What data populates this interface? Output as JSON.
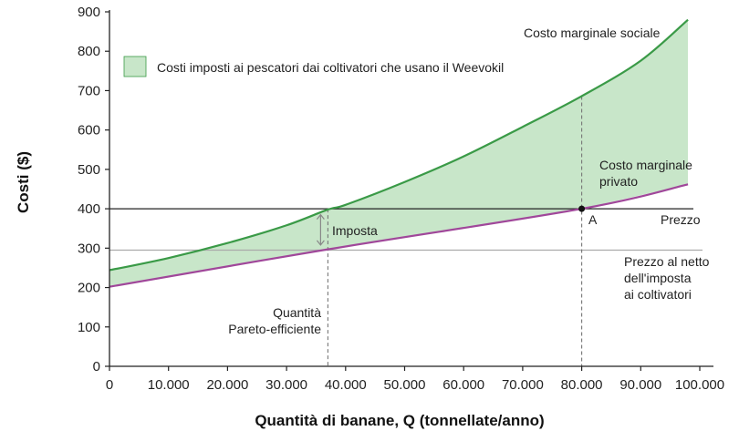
{
  "chart_data": {
    "type": "line",
    "xlabel": "Quantità di banane, Q (tonnellate/anno)",
    "ylabel": "Costi ($)",
    "xlim": [
      0,
      100000
    ],
    "ylim": [
      0,
      900
    ],
    "x_ticks": [
      0,
      10000,
      20000,
      30000,
      40000,
      50000,
      60000,
      70000,
      80000,
      90000,
      100000
    ],
    "x_tick_labels": [
      "0",
      "10.000",
      "20.000",
      "30.000",
      "40.000",
      "50.000",
      "60.000",
      "70.000",
      "80.000",
      "90.000",
      "100.000"
    ],
    "y_ticks": [
      0,
      100,
      200,
      300,
      400,
      500,
      600,
      700,
      800,
      900
    ],
    "y_tick_labels": [
      "0",
      "100",
      "200",
      "300",
      "400",
      "500",
      "600",
      "700",
      "800",
      "900"
    ],
    "grid": false,
    "series": [
      {
        "name": "Costo marginale sociale",
        "color": "#3a9a47",
        "x": [
          0,
          10000,
          20000,
          30000,
          37000,
          40000,
          50000,
          60000,
          70000,
          80000,
          90000,
          98000
        ],
        "y": [
          244,
          275,
          313,
          358,
          398,
          410,
          468,
          533,
          608,
          686,
          776,
          880
        ]
      },
      {
        "name": "Costo marginale privato",
        "color": "#a0479a",
        "x": [
          0,
          37000,
          80000,
          98000
        ],
        "y": [
          202,
          297,
          400,
          462
        ]
      }
    ],
    "reference_lines": [
      {
        "label": "Prezzo",
        "y": 400,
        "color": "#222222"
      },
      {
        "label": "Prezzo al netto dell'imposta ai coltivatori",
        "y": 295,
        "color": "#aaaaaa"
      }
    ],
    "vertical_markers": [
      {
        "x": 37000,
        "label": "Quantità Pareto-efficiente"
      },
      {
        "x": 80000
      }
    ],
    "points": [
      {
        "label": "A",
        "x": 80000,
        "y": 400
      }
    ],
    "shaded_area": {
      "label": "Costi imposti ai pescatori dai coltivatori che usano il Weevokil",
      "color": "#c8e6c9",
      "between": [
        "Costo marginale sociale",
        "Costo marginale privato"
      ]
    },
    "annotations": {
      "imposta": "Imposta",
      "social_line_1": "Costo marginale sociale",
      "private_line_1": "Costo marginale",
      "private_line_2": "privato",
      "price": "Prezzo",
      "net_line_1": "Prezzo al netto",
      "net_line_2": "dell'imposta",
      "net_line_3": "ai coltivatori",
      "pareto_line_1": "Quantità",
      "pareto_line_2": "Pareto-efficiente",
      "point_a": "A",
      "legend": "Costi imposti ai pescatori dai coltivatori che usano il Weevokil"
    }
  }
}
